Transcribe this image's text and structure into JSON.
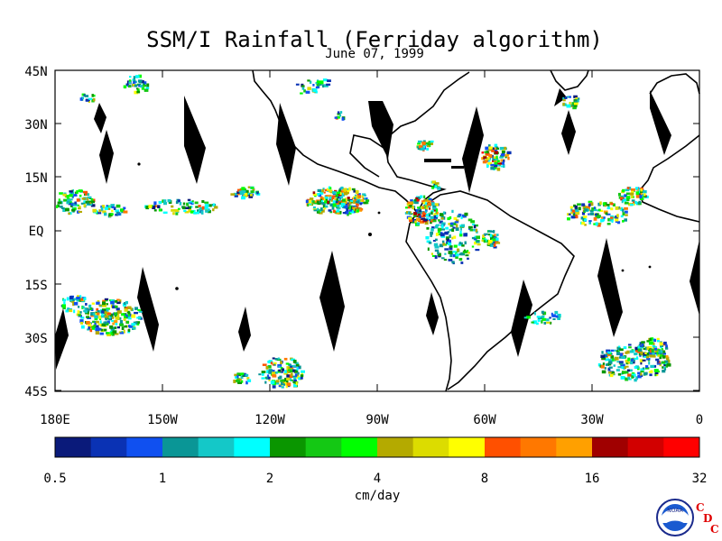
{
  "map": {
    "title": "SSM/I Rainfall (Ferriday algorithm)",
    "subtitle": "June 07, 1999",
    "lat_labels": [
      "45N",
      "30N",
      "15N",
      "EQ",
      "15S",
      "30S",
      "45S"
    ],
    "lon_labels": [
      "180E",
      "150W",
      "120W",
      "90W",
      "60W",
      "30W",
      "0"
    ]
  },
  "colorbar": {
    "colors": [
      "#0a1a7a",
      "#0a32b4",
      "#1050f0",
      "#0a9696",
      "#14c8c8",
      "#00ffff",
      "#0a9600",
      "#14c814",
      "#00ff00",
      "#b4aa00",
      "#dcdc00",
      "#ffff00",
      "#ff5000",
      "#ff7800",
      "#ffa000",
      "#a00000",
      "#d20000",
      "#ff0000"
    ],
    "tick_labels": [
      "0.5",
      "1",
      "2",
      "4",
      "8",
      "16",
      "32"
    ],
    "unit": "cm/day"
  },
  "logo": {
    "noaa_text": "NOAA",
    "cdc_letters": [
      "C",
      "D",
      "C"
    ]
  }
}
